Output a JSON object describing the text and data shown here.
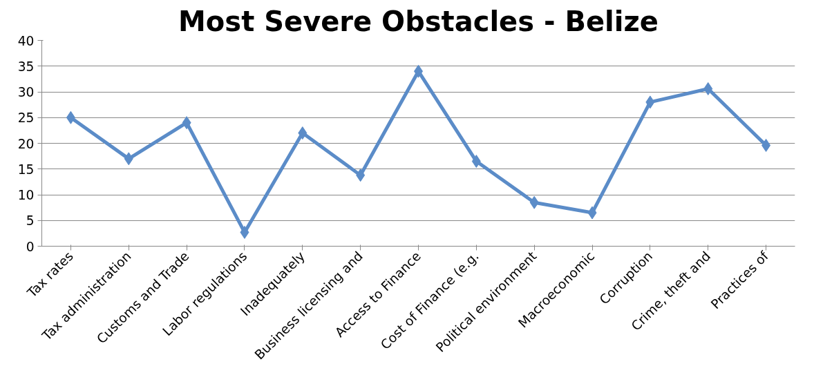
{
  "chart_data": {
    "type": "line",
    "title": "Most Severe Obstacles - Belize",
    "categories": [
      "Tax rates",
      "Tax administration",
      "Customs and Trade",
      "Labor regulations",
      "Inadequately",
      "Business licensing and",
      "Access to Finance",
      "Cost of Finance (e.g.",
      "Political environment",
      "Macroeconomic",
      "Corruption",
      "Crime, theft and",
      "Practices of"
    ],
    "series": [
      {
        "color": "#5b8cc8",
        "values": [
          25,
          17,
          24,
          2.7,
          22,
          13.8,
          34,
          16.5,
          8.5,
          6.5,
          28,
          30.6,
          19.6
        ]
      }
    ],
    "ylim": [
      0,
      40
    ],
    "yticks": [
      0,
      5,
      10,
      15,
      20,
      25,
      30,
      35,
      40
    ],
    "grid": "y",
    "marker": "diamond",
    "line_style": "solid"
  }
}
